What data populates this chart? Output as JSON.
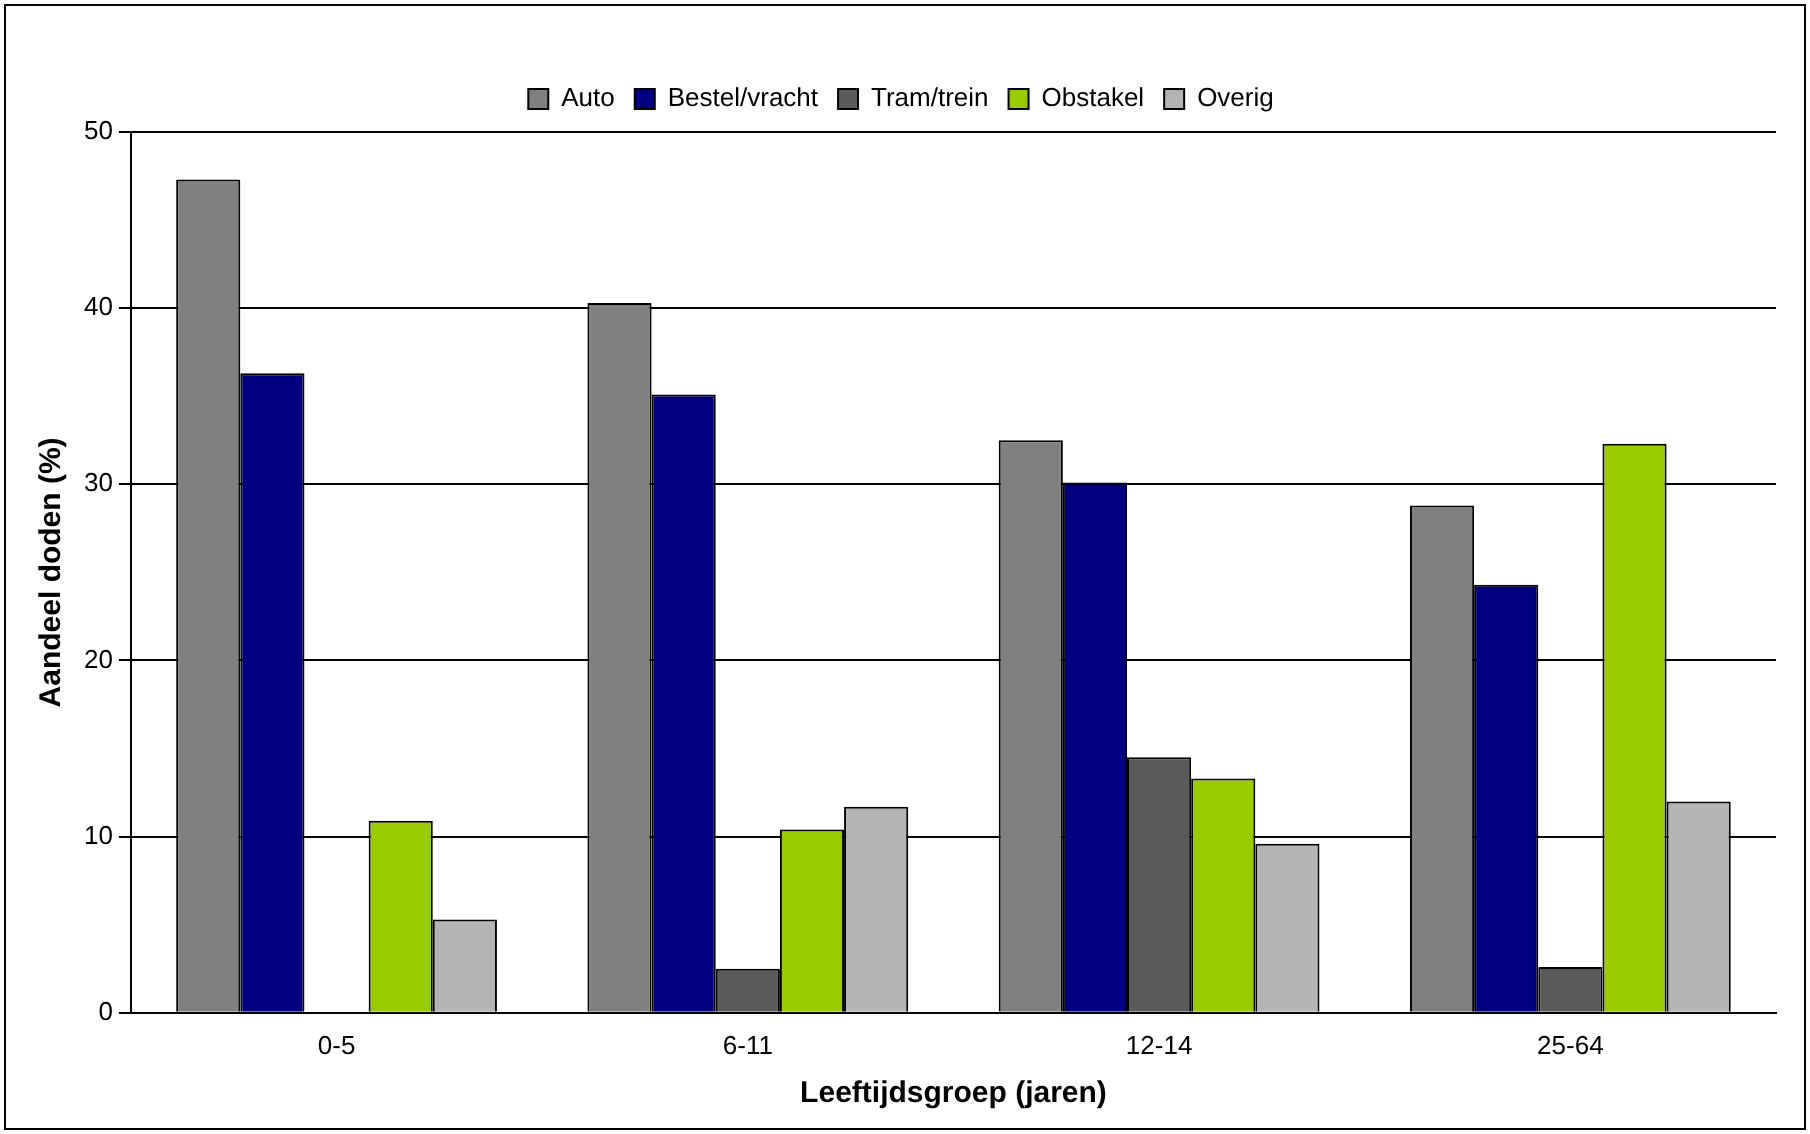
{
  "chart_data": {
    "type": "bar",
    "xlabel": "Leeftijdsgroep (jaren)",
    "ylabel": "Aandeel doden (%)",
    "categories": [
      "0-5",
      "6-11",
      "12-14",
      "25-64"
    ],
    "series": [
      {
        "name": "Auto",
        "color": "#808080",
        "values": [
          47.3,
          40.3,
          32.5,
          28.8
        ]
      },
      {
        "name": "Bestel/vracht",
        "color": "#000080",
        "values": [
          36.3,
          35.1,
          30.1,
          24.3
        ]
      },
      {
        "name": "Tram/trein",
        "color": "#5a5a5a",
        "values": [
          0,
          2.5,
          14.5,
          2.6
        ]
      },
      {
        "name": "Obstakel",
        "color": "#99cc00",
        "values": [
          10.9,
          10.4,
          13.3,
          32.3
        ]
      },
      {
        "name": "Overig",
        "color": "#b4b4b4",
        "values": [
          5.3,
          11.7,
          9.6,
          12.0
        ]
      }
    ],
    "ylim": [
      0,
      50
    ],
    "yticks": [
      0,
      10,
      20,
      30,
      40,
      50
    ],
    "grid": "y",
    "legend": "top"
  }
}
